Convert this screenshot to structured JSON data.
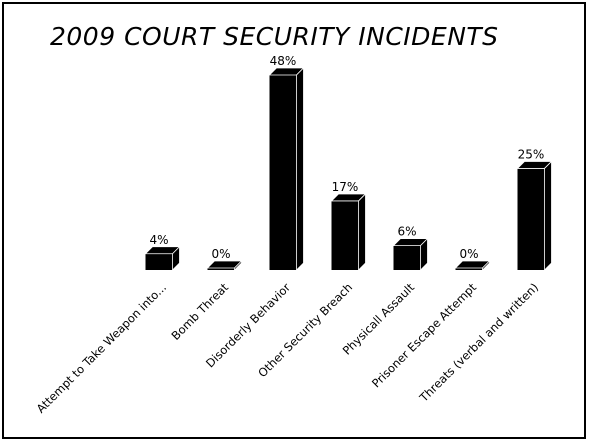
{
  "chart_data": {
    "type": "bar",
    "title": "2009 COURT SECURITY INCIDENTS",
    "categories": [
      "Attempt to Take Weapon into...",
      "Bomb Threat",
      "Disorderly Behavior",
      "Other Security Breach",
      "Physicall Assault",
      "Prisoner Escape Attempt",
      "Threats (verbal and written)"
    ],
    "values": [
      4,
      0,
      48,
      17,
      6,
      0,
      25
    ],
    "data_labels": [
      "4%",
      "0%",
      "48%",
      "17%",
      "6%",
      "0%",
      "25%"
    ],
    "ylim": [
      0,
      48
    ],
    "grid": false,
    "legend": "none",
    "bar_color": "#000000"
  }
}
